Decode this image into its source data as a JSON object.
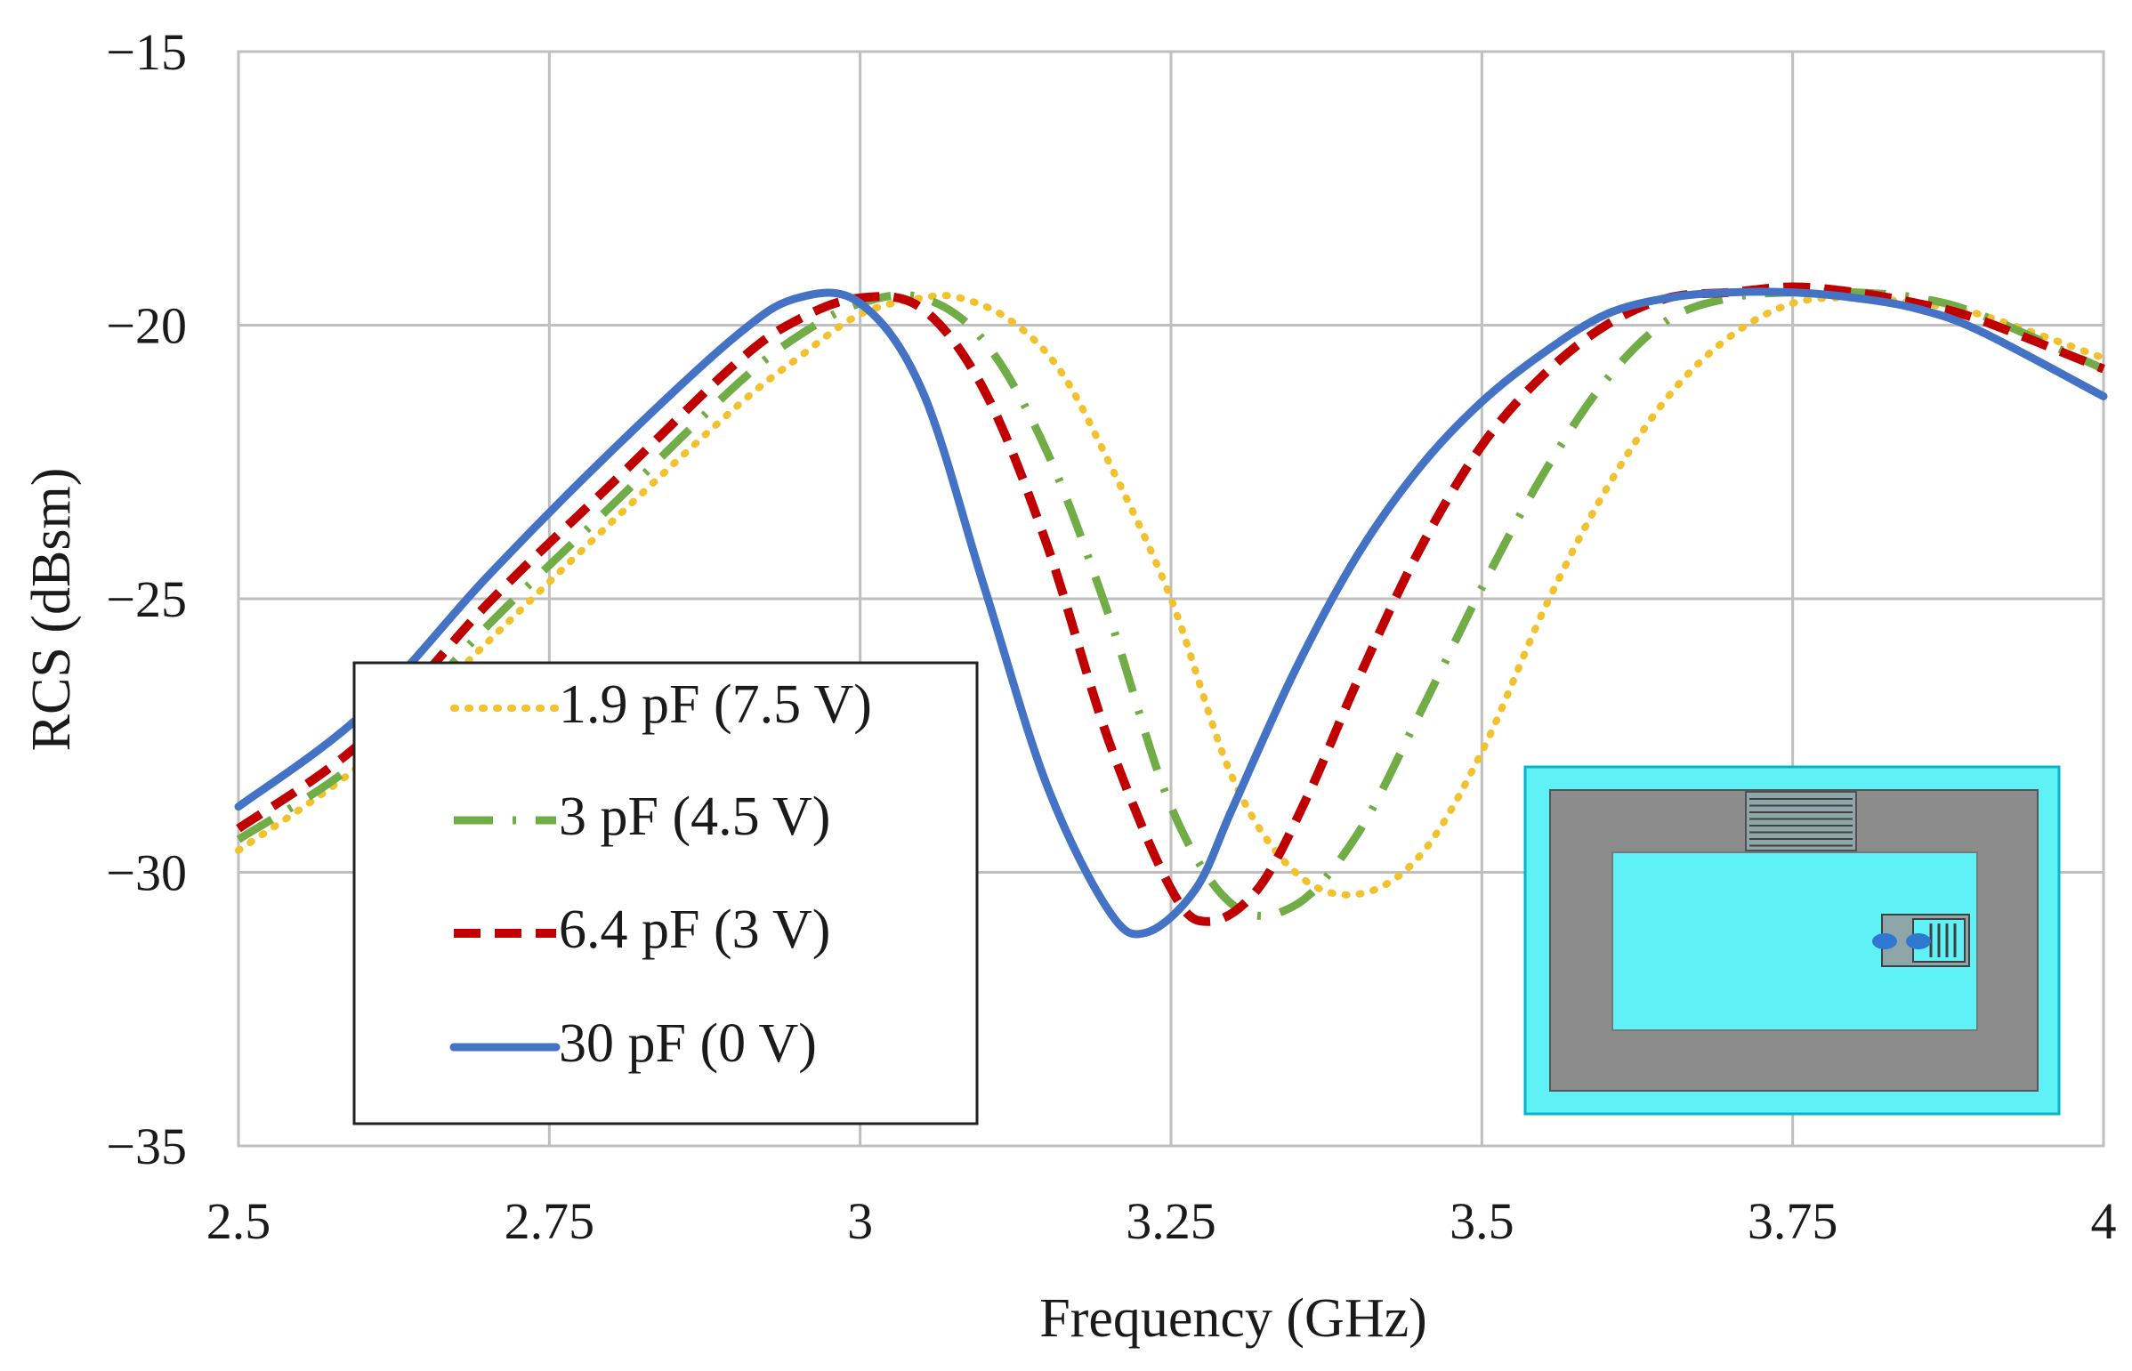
{
  "chart_data": {
    "type": "line",
    "title": "",
    "xlabel": "Frequency (GHz)",
    "ylabel": "RCS (dBsm)",
    "xlim": [
      2.5,
      4
    ],
    "ylim": [
      -35,
      -15
    ],
    "grid": true,
    "legend_position": "bottom-left",
    "x_ticks": [
      {
        "value": 2.5,
        "label": "2.5"
      },
      {
        "value": 2.75,
        "label": "2.75"
      },
      {
        "value": 3,
        "label": "3"
      },
      {
        "value": 3.25,
        "label": "3.25"
      },
      {
        "value": 3.5,
        "label": "3.5"
      },
      {
        "value": 3.75,
        "label": "3.75"
      },
      {
        "value": 4,
        "label": "4"
      }
    ],
    "y_ticks": [
      {
        "value": -15,
        "label": "−15"
      },
      {
        "value": -20,
        "label": "−20"
      },
      {
        "value": -25,
        "label": "−25"
      },
      {
        "value": -30,
        "label": "−30"
      },
      {
        "value": -35,
        "label": "−35"
      }
    ],
    "series": [
      {
        "name": "1.9 pF (7.5 V)",
        "color": "#f2c12e",
        "style": "dotted",
        "x": [
          2.5,
          2.6,
          2.7,
          2.8,
          2.9,
          2.95,
          3.0,
          3.05,
          3.08,
          3.12,
          3.16,
          3.2,
          3.25,
          3.3,
          3.35,
          3.4,
          3.45,
          3.5,
          3.55,
          3.6,
          3.65,
          3.7,
          3.75,
          3.8,
          3.85,
          3.9,
          4.0
        ],
        "values": [
          -29.6,
          -28.0,
          -25.8,
          -23.6,
          -21.5,
          -20.6,
          -19.8,
          -19.5,
          -19.5,
          -19.9,
          -20.8,
          -22.5,
          -25.0,
          -28.3,
          -30.0,
          -30.4,
          -29.7,
          -27.8,
          -25.2,
          -23.0,
          -21.3,
          -20.2,
          -19.6,
          -19.5,
          -19.6,
          -19.8,
          -20.6
        ]
      },
      {
        "name": "3 pF (4.5 V)",
        "color": "#70ad47",
        "style": "dashdot",
        "x": [
          2.5,
          2.6,
          2.7,
          2.8,
          2.9,
          2.95,
          3.0,
          3.05,
          3.1,
          3.15,
          3.2,
          3.25,
          3.3,
          3.35,
          3.4,
          3.45,
          3.5,
          3.55,
          3.6,
          3.65,
          3.7,
          3.75,
          3.8,
          3.85,
          3.9,
          4.0
        ],
        "values": [
          -29.4,
          -27.9,
          -25.5,
          -23.3,
          -21.1,
          -20.2,
          -19.6,
          -19.5,
          -20.3,
          -22.3,
          -25.3,
          -28.8,
          -30.6,
          -30.6,
          -29.3,
          -27.1,
          -24.8,
          -22.7,
          -21.0,
          -19.9,
          -19.5,
          -19.4,
          -19.4,
          -19.5,
          -19.8,
          -20.8
        ]
      },
      {
        "name": "6.4 pF (3 V)",
        "color": "#c00000",
        "style": "dashed",
        "x": [
          2.5,
          2.6,
          2.7,
          2.8,
          2.9,
          2.95,
          3.0,
          3.05,
          3.1,
          3.15,
          3.2,
          3.25,
          3.28,
          3.32,
          3.36,
          3.4,
          3.45,
          3.5,
          3.55,
          3.6,
          3.65,
          3.7,
          3.75,
          3.8,
          3.85,
          3.9,
          4.0
        ],
        "values": [
          -29.2,
          -27.6,
          -25.1,
          -22.9,
          -20.7,
          -19.9,
          -19.5,
          -19.7,
          -21.2,
          -24.0,
          -27.6,
          -30.3,
          -30.9,
          -30.3,
          -28.6,
          -26.5,
          -24.1,
          -22.2,
          -20.9,
          -20.0,
          -19.5,
          -19.4,
          -19.3,
          -19.4,
          -19.6,
          -19.9,
          -20.8
        ]
      },
      {
        "name": "30 pF (0 V)",
        "color": "#4472c4",
        "style": "solid",
        "x": [
          2.5,
          2.6,
          2.7,
          2.8,
          2.9,
          2.95,
          3.0,
          3.05,
          3.1,
          3.15,
          3.2,
          3.23,
          3.27,
          3.3,
          3.35,
          3.4,
          3.45,
          3.5,
          3.55,
          3.6,
          3.65,
          3.7,
          3.75,
          3.8,
          3.85,
          3.9,
          4.0
        ],
        "values": [
          -28.8,
          -27.1,
          -24.6,
          -22.3,
          -20.2,
          -19.5,
          -19.6,
          -21.2,
          -24.8,
          -28.4,
          -30.7,
          -31.1,
          -30.3,
          -28.8,
          -26.3,
          -24.2,
          -22.6,
          -21.4,
          -20.5,
          -19.8,
          -19.5,
          -19.4,
          -19.4,
          -19.5,
          -19.7,
          -20.1,
          -21.3
        ]
      }
    ],
    "inset": {
      "colors": {
        "background": "#5ef2f7",
        "border": "#0ab4c7",
        "frame": "#8c8c8c",
        "dark": "#404040",
        "lobe": "#2f78d0"
      }
    }
  }
}
